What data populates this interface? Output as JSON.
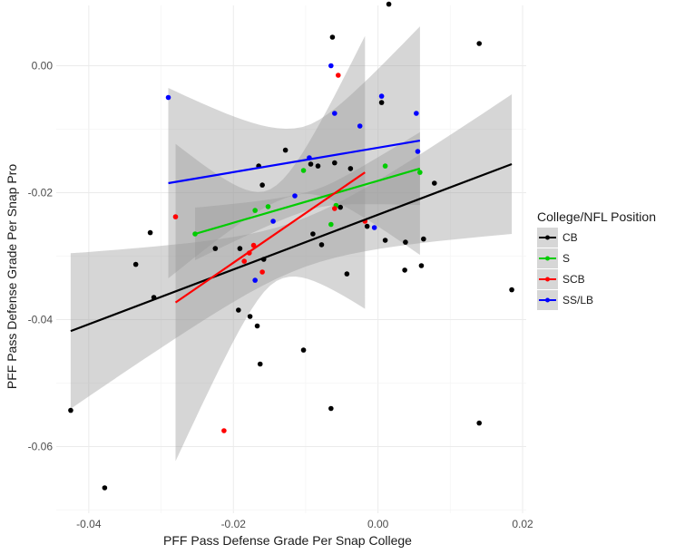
{
  "chart_data": {
    "type": "scatter",
    "title": "",
    "xlabel": "PFF Pass Defense Grade Per Snap College",
    "ylabel": "PFF Pass Defense Grade Per Snap Pro",
    "xlim": [
      -0.0445,
      0.0205
    ],
    "ylim": [
      -0.0705,
      0.0095
    ],
    "x_ticks": [
      -0.04,
      -0.02,
      0.0,
      0.02
    ],
    "x_tick_labels": [
      "-0.04",
      "-0.02",
      "0.00",
      "0.02"
    ],
    "y_ticks": [
      -0.06,
      -0.04,
      -0.02,
      0.0
    ],
    "y_tick_labels": [
      "-0.06",
      "-0.04",
      "-0.02",
      "0.00"
    ],
    "grid": true,
    "legend": {
      "title": "College/NFL Position",
      "position": "right",
      "entries": [
        "CB",
        "S",
        "SCB",
        "SS/LB"
      ]
    },
    "series": [
      {
        "name": "CB",
        "color": "#000000",
        "points": [
          [
            -0.0425,
            -0.0543
          ],
          [
            -0.0378,
            -0.0665
          ],
          [
            -0.0335,
            -0.0313
          ],
          [
            -0.0315,
            -0.0263
          ],
          [
            -0.031,
            -0.0365
          ],
          [
            -0.0225,
            -0.0288
          ],
          [
            -0.0193,
            -0.0385
          ],
          [
            -0.0191,
            -0.0288
          ],
          [
            -0.0177,
            -0.0395
          ],
          [
            -0.0167,
            -0.041
          ],
          [
            -0.0165,
            -0.0158
          ],
          [
            -0.0163,
            -0.047
          ],
          [
            -0.016,
            -0.0188
          ],
          [
            -0.0158,
            -0.0305
          ],
          [
            -0.0128,
            -0.0133
          ],
          [
            -0.0103,
            -0.0448
          ],
          [
            -0.0093,
            -0.0155
          ],
          [
            -0.009,
            -0.0265
          ],
          [
            -0.0083,
            -0.0158
          ],
          [
            -0.0078,
            -0.0282
          ],
          [
            -0.0065,
            -0.054
          ],
          [
            -0.006,
            -0.0153
          ],
          [
            -0.0063,
            0.0045
          ],
          [
            -0.0052,
            -0.0223
          ],
          [
            -0.0043,
            -0.0328
          ],
          [
            -0.0038,
            -0.0162
          ],
          [
            -0.0015,
            -0.0253
          ],
          [
            0.0005,
            -0.0058
          ],
          [
            0.001,
            -0.0275
          ],
          [
            0.0015,
            0.0097
          ],
          [
            0.0037,
            -0.0322
          ],
          [
            0.0038,
            -0.0278
          ],
          [
            0.006,
            -0.0315
          ],
          [
            0.0063,
            -0.0273
          ],
          [
            0.0078,
            -0.0185
          ],
          [
            0.014,
            0.0035
          ],
          [
            0.014,
            -0.0563
          ],
          [
            0.0185,
            -0.0353
          ]
        ],
        "fit": [
          [
            -0.0425,
            -0.0418
          ],
          [
            0.0185,
            -0.0155
          ]
        ],
        "band_x": [
          -0.0425,
          0.0185
        ],
        "band_upper": [
          -0.0295,
          -0.0045
        ],
        "band_lower": [
          -0.054,
          -0.0265
        ]
      },
      {
        "name": "S",
        "color": "#00cc00",
        "points": [
          [
            -0.0253,
            -0.0265
          ],
          [
            -0.017,
            -0.0228
          ],
          [
            -0.0152,
            -0.0222
          ],
          [
            -0.0103,
            -0.0165
          ],
          [
            -0.0065,
            -0.025
          ],
          [
            -0.0058,
            -0.022
          ],
          [
            0.001,
            -0.0158
          ],
          [
            0.0058,
            -0.0168
          ]
        ],
        "fit": [
          [
            -0.0253,
            -0.0265
          ],
          [
            0.0058,
            -0.0162
          ]
        ],
        "band_x": [
          -0.0253,
          0.0058
        ],
        "band_upper": [
          -0.0225,
          -0.0105
        ],
        "band_lower": [
          -0.0308,
          -0.022
        ]
      },
      {
        "name": "SCB",
        "color": "#ff0000",
        "points": [
          [
            -0.028,
            -0.0238
          ],
          [
            -0.0213,
            -0.0575
          ],
          [
            -0.0185,
            -0.0308
          ],
          [
            -0.0178,
            -0.0295
          ],
          [
            -0.0172,
            -0.0283
          ],
          [
            -0.016,
            -0.0325
          ],
          [
            -0.0055,
            -0.0015
          ],
          [
            -0.006,
            -0.0225
          ],
          [
            -0.0018,
            -0.0245
          ]
        ],
        "fit": [
          [
            -0.028,
            -0.0373
          ],
          [
            -0.0018,
            -0.0168
          ]
        ],
        "band_x": [
          -0.028,
          -0.0018
        ],
        "band_upper": [
          -0.0125,
          0.0045
        ],
        "band_lower": [
          -0.0625,
          -0.0385
        ]
      },
      {
        "name": "SS/LB",
        "color": "#0000ff",
        "points": [
          [
            -0.029,
            -0.005
          ],
          [
            -0.017,
            -0.0338
          ],
          [
            -0.0145,
            -0.0245
          ],
          [
            -0.0115,
            -0.0205
          ],
          [
            -0.0095,
            -0.0145
          ],
          [
            -0.0065,
            0.0
          ],
          [
            -0.006,
            -0.0075
          ],
          [
            -0.0025,
            -0.0095
          ],
          [
            -0.0005,
            -0.0255
          ],
          [
            0.0005,
            -0.0048
          ],
          [
            0.0053,
            -0.0075
          ],
          [
            0.0055,
            -0.0135
          ]
        ],
        "fit": [
          [
            -0.029,
            -0.0185
          ],
          [
            0.0058,
            -0.0118
          ]
        ],
        "band_x": [
          -0.029,
          0.0058
        ],
        "band_upper": [
          -0.0045,
          0.007
        ],
        "band_lower": [
          -0.0345,
          -0.029
        ]
      }
    ]
  }
}
